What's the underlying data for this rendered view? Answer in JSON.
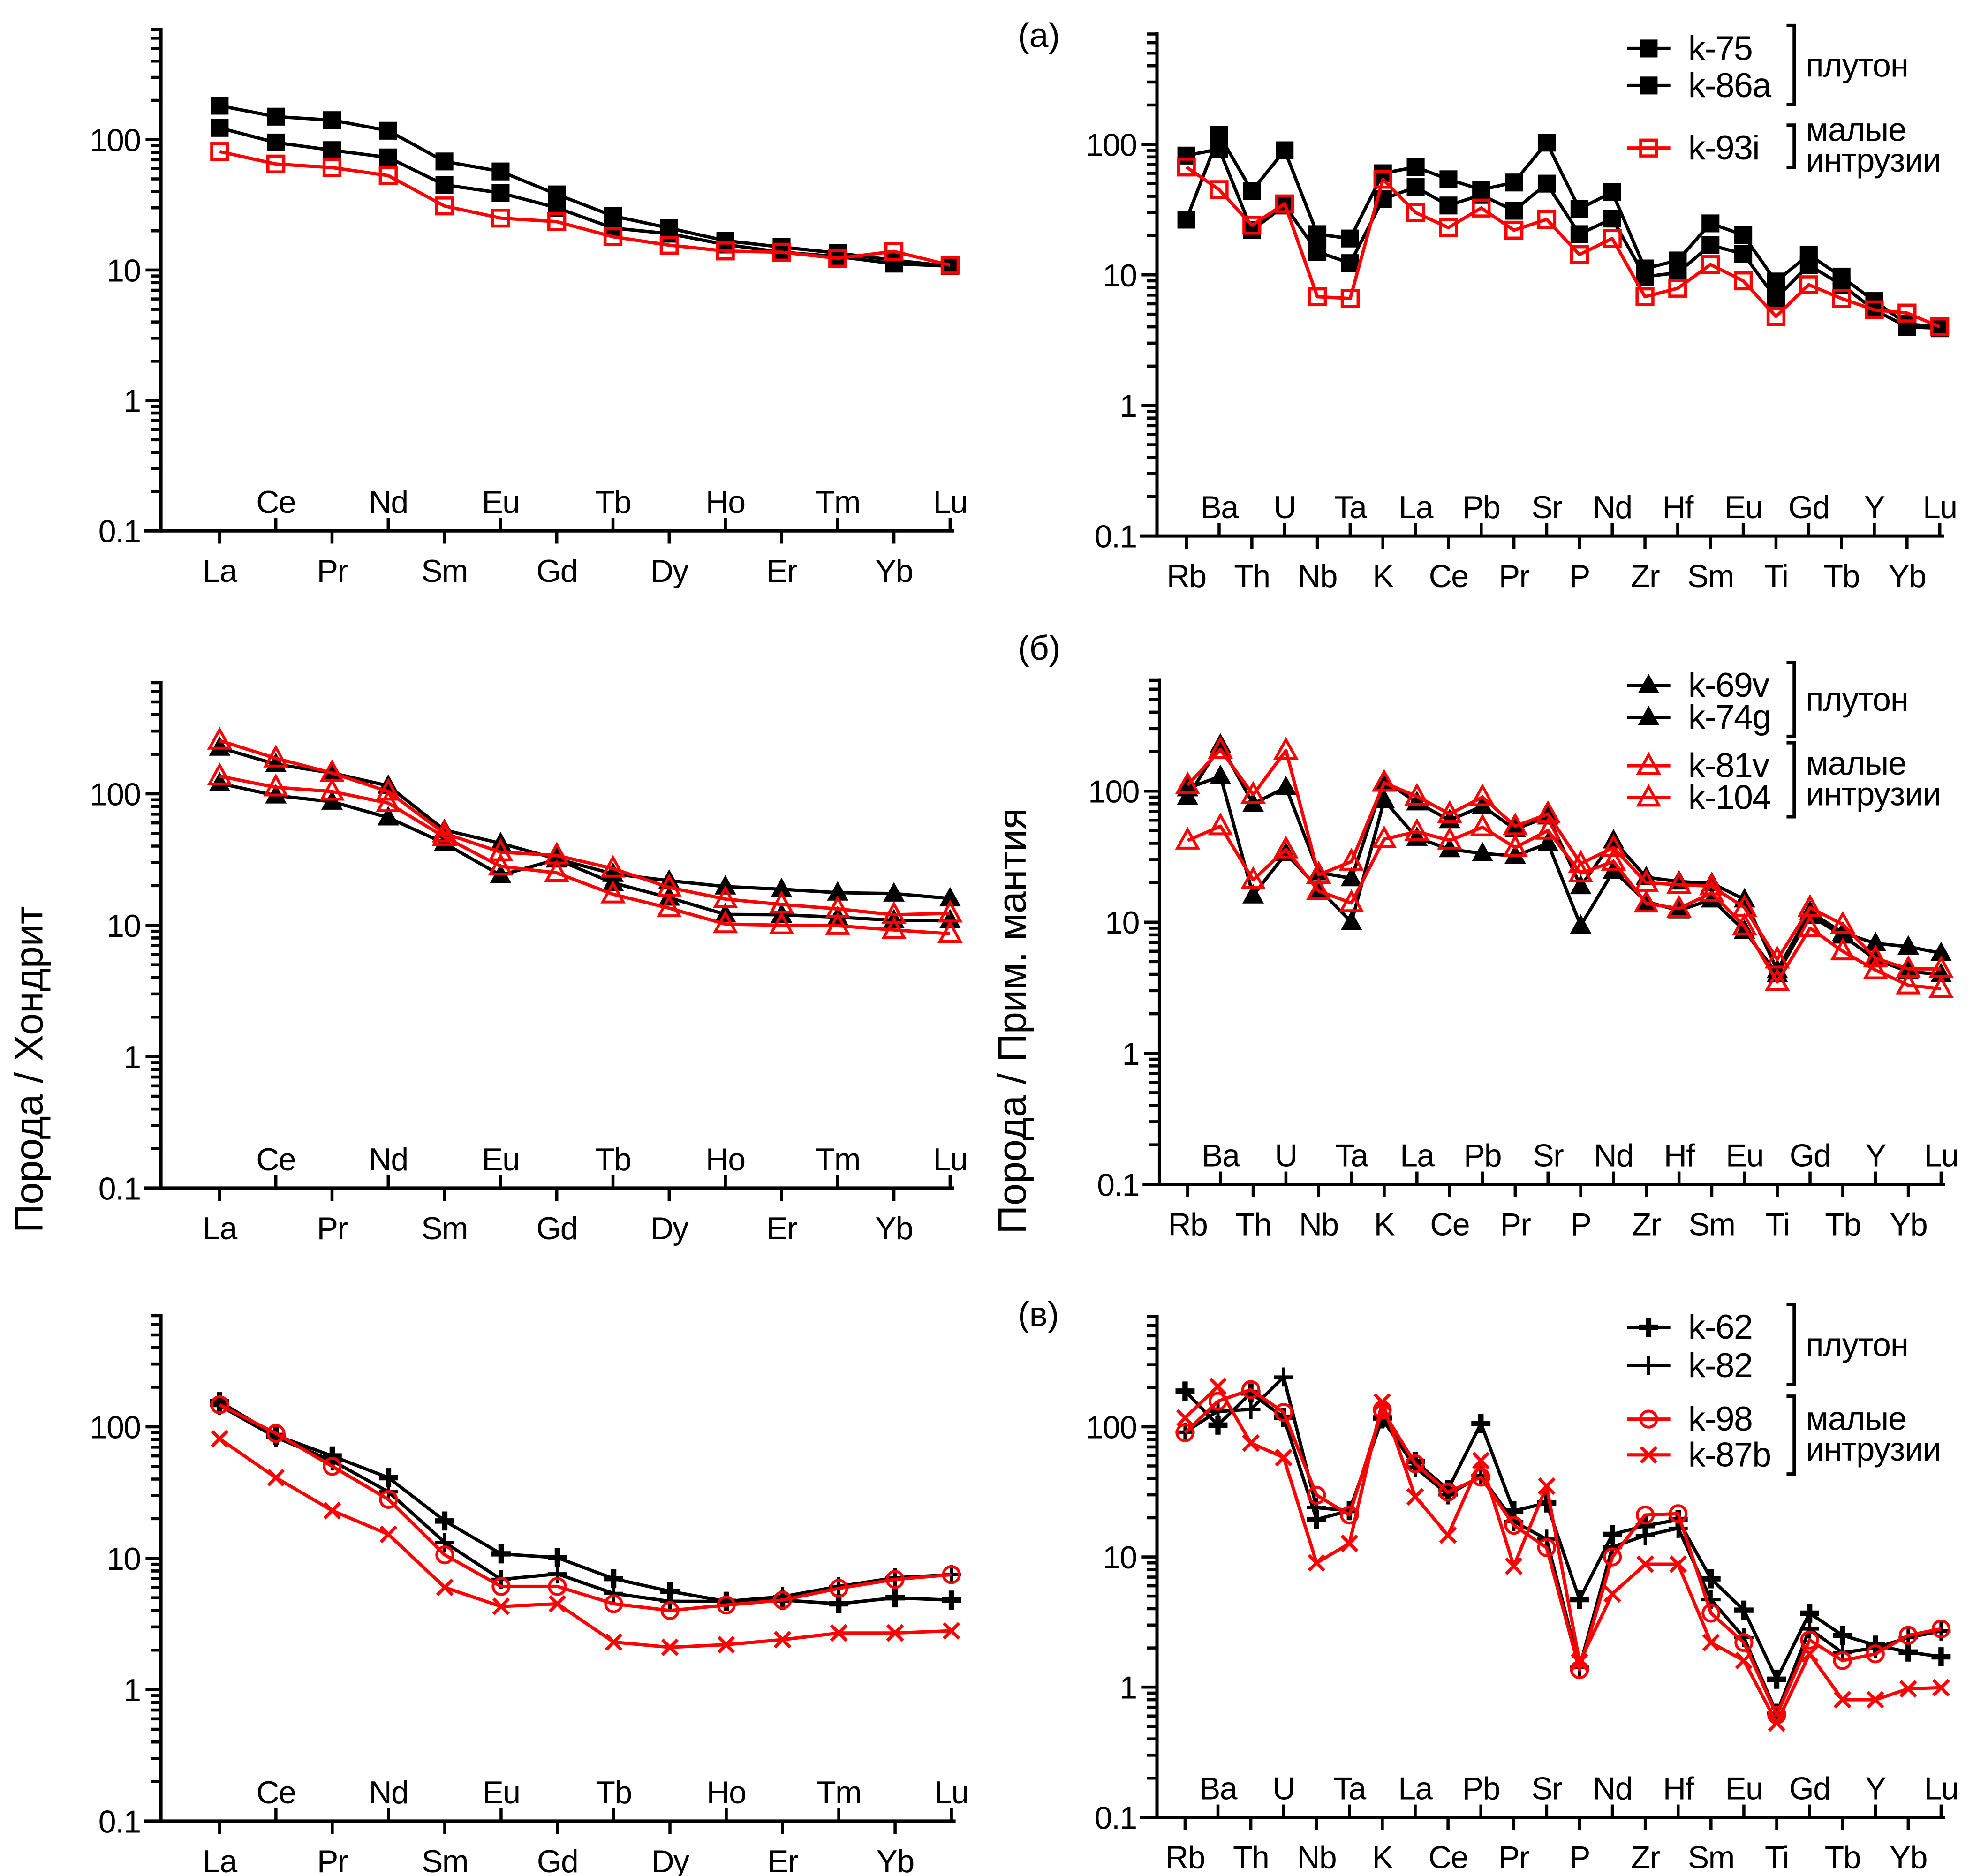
{
  "chart_data": [
    {
      "id": "ree-a",
      "type": "line",
      "title": "",
      "panel_label": "",
      "xlabel": "",
      "ylabel": "",
      "yscale": "log",
      "ylim": [
        0.1,
        700
      ],
      "yticks": [
        0.1,
        1,
        10,
        100
      ],
      "ytick_labels": [
        "0.1",
        "1",
        "10",
        "100"
      ],
      "grid": false,
      "categories": [
        "La",
        "Ce",
        "Pr",
        "Nd",
        "Sm",
        "Eu",
        "Gd",
        "Tb",
        "Dy",
        "Ho",
        "Er",
        "Tm",
        "Yb",
        "Lu"
      ],
      "series": [
        {
          "name": "k-75",
          "color": "#000000",
          "marker": "square",
          "filled": true,
          "values": [
            182,
            150,
            141,
            117,
            68,
            57,
            38,
            26,
            21,
            16.8,
            15,
            13.5,
            11.9,
            10.7
          ]
        },
        {
          "name": "k-86a",
          "color": "#000000",
          "marker": "square",
          "filled": true,
          "values": [
            123,
            95,
            83,
            73,
            45,
            39,
            30,
            21,
            19,
            15.7,
            13.7,
            12.7,
            11.2,
            10.7
          ]
        },
        {
          "name": "k-93i",
          "color": "#ff0000",
          "marker": "square",
          "filled": false,
          "values": [
            81,
            65,
            61,
            53,
            31,
            25,
            23.5,
            18,
            15.5,
            14,
            13.7,
            12.3,
            13.9,
            10.9
          ]
        }
      ],
      "legend": null
    },
    {
      "id": "spider-a",
      "type": "line",
      "title": "",
      "panel_label": "(а)",
      "xlabel": "",
      "ylabel": "",
      "yscale": "log",
      "ylim": [
        0.1,
        700
      ],
      "yticks": [
        0.1,
        1,
        10,
        100
      ],
      "ytick_labels": [
        "0.1",
        "1",
        "10",
        "100"
      ],
      "grid": false,
      "categories": [
        "Rb",
        "Ba",
        "Th",
        "U",
        "Nb",
        "Ta",
        "K",
        "La",
        "Ce",
        "Pb",
        "Pr",
        "Sr",
        "P",
        "Nd",
        "Zr",
        "Hf",
        "Sm",
        "Eu",
        "Ti",
        "Gd",
        "Tb",
        "Y",
        "Yb",
        "Lu"
      ],
      "series": [
        {
          "name": "k-75",
          "color": "#000000",
          "marker": "square",
          "filled": true,
          "values": [
            26.5,
            118,
            44,
            90,
            20.5,
            19,
            60,
            67,
            54,
            45,
            51,
            103,
            32,
            43,
            11.2,
            12.9,
            24.8,
            20.2,
            8.9,
            14.3,
            9.7,
            6.3,
            4.2,
            4.0
          ]
        },
        {
          "name": "k-86a",
          "color": "#000000",
          "marker": "square",
          "filled": true,
          "values": [
            82,
            92,
            22,
            34,
            15,
            12.3,
            38,
            47,
            34,
            41,
            31,
            50,
            20.5,
            27,
            9.7,
            10.4,
            16.9,
            14.5,
            6.6,
            11.9,
            8.4,
            5.4,
            4.0,
            3.9
          ]
        },
        {
          "name": "k-93i",
          "color": "#ff0000",
          "marker": "square",
          "filled": false,
          "values": [
            67,
            45,
            24,
            35,
            6.8,
            6.6,
            54,
            30,
            23,
            32.5,
            22,
            26.6,
            14.3,
            19,
            6.8,
            7.9,
            12,
            9,
            4.8,
            8.4,
            6.6,
            5.4,
            5.1,
            4.0
          ]
        }
      ],
      "legend": {
        "placement": "top-right",
        "groups": [
          {
            "label": [
              "плутон"
            ],
            "members": [
              "k-75",
              "k-86a"
            ]
          },
          {
            "label": [
              "малые",
              "интрузии"
            ],
            "members": [
              "k-93i"
            ]
          }
        ]
      }
    },
    {
      "id": "ree-b",
      "type": "line",
      "title": "",
      "panel_label": "",
      "xlabel": "",
      "ylabel": "Порода / Хондрит",
      "yscale": "log",
      "ylim": [
        0.1,
        700
      ],
      "yticks": [
        0.1,
        1,
        10,
        100
      ],
      "ytick_labels": [
        "0.1",
        "1",
        "10",
        "100"
      ],
      "grid": false,
      "categories": [
        "La",
        "Ce",
        "Pr",
        "Nd",
        "Sm",
        "Eu",
        "Gd",
        "Tb",
        "Dy",
        "Ho",
        "Er",
        "Tm",
        "Yb",
        "Lu"
      ],
      "series": [
        {
          "name": "k-69v",
          "color": "#000000",
          "marker": "triangle",
          "filled": true,
          "values": [
            224,
            168,
            144,
            115,
            53,
            42,
            32,
            24.6,
            21.8,
            19.7,
            18.8,
            17.7,
            17.4,
            16
          ]
        },
        {
          "name": "k-74g",
          "color": "#000000",
          "marker": "triangle",
          "filled": true,
          "values": [
            120,
            97,
            87,
            66,
            42,
            24,
            31.6,
            21,
            16.2,
            12.1,
            12,
            11.5,
            10.9,
            10.9
          ]
        },
        {
          "name": "k-81v",
          "color": "#ff0000",
          "marker": "triangle",
          "filled": false,
          "values": [
            254,
            186,
            144,
            104,
            50,
            36,
            34,
            27,
            19.4,
            15.8,
            14.4,
            13.3,
            12,
            12.3
          ]
        },
        {
          "name": "k-104",
          "color": "#ff0000",
          "marker": "triangle",
          "filled": false,
          "values": [
            136,
            112,
            104,
            85,
            47,
            28,
            25,
            17.2,
            13.5,
            10.2,
            10,
            9.9,
            9.2,
            8.6
          ]
        }
      ],
      "legend": null
    },
    {
      "id": "spider-b",
      "type": "line",
      "title": "",
      "panel_label": "(б)",
      "xlabel": "",
      "ylabel": "Порода / Прим. мантия",
      "yscale": "log",
      "ylim": [
        0.1,
        700
      ],
      "yticks": [
        0.1,
        1,
        10,
        100
      ],
      "ytick_labels": [
        "0.1",
        "1",
        "10",
        "100"
      ],
      "grid": false,
      "categories": [
        "Rb",
        "Ba",
        "Th",
        "U",
        "Nb",
        "Ta",
        "K",
        "La",
        "Ce",
        "Pb",
        "Pr",
        "Sr",
        "P",
        "Nd",
        "Zr",
        "Hf",
        "Sm",
        "Eu",
        "Ti",
        "Gd",
        "Tb",
        "Y",
        "Yb",
        "Lu"
      ],
      "series": [
        {
          "name": "k-69v",
          "color": "#000000",
          "marker": "triangle",
          "filled": true,
          "values": [
            90,
            226,
            80,
            107,
            24,
            21.6,
            120,
            82,
            60,
            77,
            51,
            64,
            18.8,
            42,
            22,
            20.4,
            19.8,
            14.9,
            4.3,
            12,
            8.3,
            6.9,
            6.5,
            5.8
          ]
        },
        {
          "name": "k-74g",
          "color": "#000000",
          "marker": "triangle",
          "filled": true,
          "values": [
            105,
            130,
            16,
            33.5,
            18,
            10,
            85,
            44,
            36,
            33.5,
            32,
            40,
            9.4,
            24.7,
            14.3,
            12.3,
            14.9,
            8.6,
            4.0,
            11.2,
            7.9,
            5.2,
            4.2,
            4.0
          ]
        },
        {
          "name": "k-81v",
          "color": "#ff0000",
          "marker": "triangle",
          "filled": false,
          "values": [
            111,
            207,
            94,
            204,
            23,
            29,
            116,
            91,
            67,
            90,
            54,
            67,
            28,
            37,
            20,
            19.3,
            18.8,
            12.9,
            5.2,
            12.9,
            9.6,
            5.3,
            4.4,
            4.4
          ]
        },
        {
          "name": "k-104",
          "color": "#ff0000",
          "marker": "triangle",
          "filled": false,
          "values": [
            42,
            54,
            21,
            36,
            17.3,
            14,
            43,
            49,
            42,
            53,
            37,
            50,
            23.6,
            29,
            13.9,
            12.7,
            16.7,
            9.3,
            3.5,
            9.0,
            6.0,
            4.3,
            3.3,
            3.1
          ]
        }
      ],
      "legend": {
        "placement": "top-right",
        "groups": [
          {
            "label": [
              "плутон"
            ],
            "members": [
              "k-69v",
              "k-74g"
            ]
          },
          {
            "label": [
              "малые",
              "интрузии"
            ],
            "members": [
              "k-81v",
              "k-104"
            ]
          }
        ]
      }
    },
    {
      "id": "ree-c",
      "type": "line",
      "title": "",
      "panel_label": "",
      "xlabel": "",
      "ylabel": "",
      "yscale": "log",
      "ylim": [
        0.1,
        700
      ],
      "yticks": [
        0.1,
        1,
        10,
        100
      ],
      "ytick_labels": [
        "0.1",
        "1",
        "10",
        "100"
      ],
      "grid": false,
      "categories": [
        "La",
        "Ce",
        "Pr",
        "Nd",
        "Sm",
        "Eu",
        "Gd",
        "Tb",
        "Dy",
        "Ho",
        "Er",
        "Tm",
        "Yb",
        "Lu"
      ],
      "series": [
        {
          "name": "k-62",
          "color": "#000000",
          "marker": "plus-bold",
          "filled": true,
          "values": [
            155,
            86,
            60,
            41,
            19.2,
            10.8,
            10.1,
            7.0,
            5.6,
            4.7,
            4.8,
            4.5,
            5.0,
            4.8
          ]
        },
        {
          "name": "k-82",
          "color": "#000000",
          "marker": "plus",
          "filled": true,
          "values": [
            145,
            83,
            55,
            32,
            13.2,
            6.9,
            7.6,
            5.4,
            4.7,
            4.7,
            5.1,
            6.1,
            7.1,
            7.5
          ]
        },
        {
          "name": "k-98",
          "color": "#ff0000",
          "marker": "circle",
          "filled": false,
          "values": [
            147,
            89,
            50,
            28,
            10.6,
            6.1,
            6.1,
            4.5,
            4.0,
            4.4,
            4.8,
            5.9,
            6.9,
            7.5
          ]
        },
        {
          "name": "k-87b",
          "color": "#ff0000",
          "marker": "x",
          "filled": false,
          "values": [
            81,
            41,
            23,
            15.2,
            6.0,
            4.3,
            4.5,
            2.3,
            2.1,
            2.2,
            2.4,
            2.7,
            2.7,
            2.8
          ]
        }
      ],
      "legend": null
    },
    {
      "id": "spider-c",
      "type": "line",
      "title": "",
      "panel_label": "(в)",
      "xlabel": "",
      "ylabel": "",
      "yscale": "log",
      "ylim": [
        0.1,
        700
      ],
      "yticks": [
        0.1,
        1,
        10,
        100
      ],
      "ytick_labels": [
        "0.1",
        "1",
        "10",
        "100"
      ],
      "grid": false,
      "categories": [
        "Rb",
        "Ba",
        "Th",
        "U",
        "Nb",
        "Ta",
        "K",
        "La",
        "Ce",
        "Pb",
        "Pr",
        "Sr",
        "P",
        "Nd",
        "Zr",
        "Hf",
        "Sm",
        "Eu",
        "Ti",
        "Gd",
        "Tb",
        "Y",
        "Yb",
        "Lu"
      ],
      "series": [
        {
          "name": "k-62",
          "color": "#000000",
          "marker": "plus-bold",
          "filled": true,
          "values": [
            188,
            103,
            182,
            118,
            19.4,
            22.7,
            117,
            54,
            33,
            106,
            22.6,
            26,
            4.7,
            14.9,
            17.4,
            19.3,
            6.8,
            3.9,
            1.15,
            3.7,
            2.5,
            2.1,
            1.86,
            1.71
          ]
        },
        {
          "name": "k-82",
          "color": "#000000",
          "marker": "plus",
          "filled": true,
          "values": [
            91,
            132,
            136,
            241,
            23.9,
            22.7,
            115,
            49,
            30,
            42,
            18.7,
            13.7,
            1.42,
            11.9,
            14.6,
            16.6,
            4.7,
            2.4,
            0.63,
            2.8,
            1.84,
            2.0,
            2.4,
            2.7
          ]
        },
        {
          "name": "k-98",
          "color": "#ff0000",
          "marker": "circle",
          "filled": false,
          "values": [
            90,
            157,
            193,
            129,
            29.8,
            21,
            135,
            52,
            31.5,
            41,
            17.5,
            11.8,
            1.36,
            10,
            21,
            21.5,
            3.7,
            2.2,
            0.61,
            2.3,
            1.6,
            1.8,
            2.5,
            2.8
          ]
        },
        {
          "name": "k-87b",
          "color": "#ff0000",
          "marker": "x",
          "filled": false,
          "values": [
            117,
            204,
            75,
            58,
            9.0,
            12.7,
            155,
            29,
            14.7,
            55,
            8.5,
            35,
            1.56,
            5.2,
            8.8,
            8.8,
            2.2,
            1.6,
            0.53,
            1.8,
            0.8,
            0.8,
            0.97,
            0.99
          ]
        }
      ],
      "legend": {
        "placement": "top-right",
        "groups": [
          {
            "label": [
              "плутон"
            ],
            "members": [
              "k-62",
              "k-82"
            ]
          },
          {
            "label": [
              "малые",
              "интрузии"
            ],
            "members": [
              "k-98",
              "k-87b"
            ]
          }
        ]
      }
    }
  ]
}
